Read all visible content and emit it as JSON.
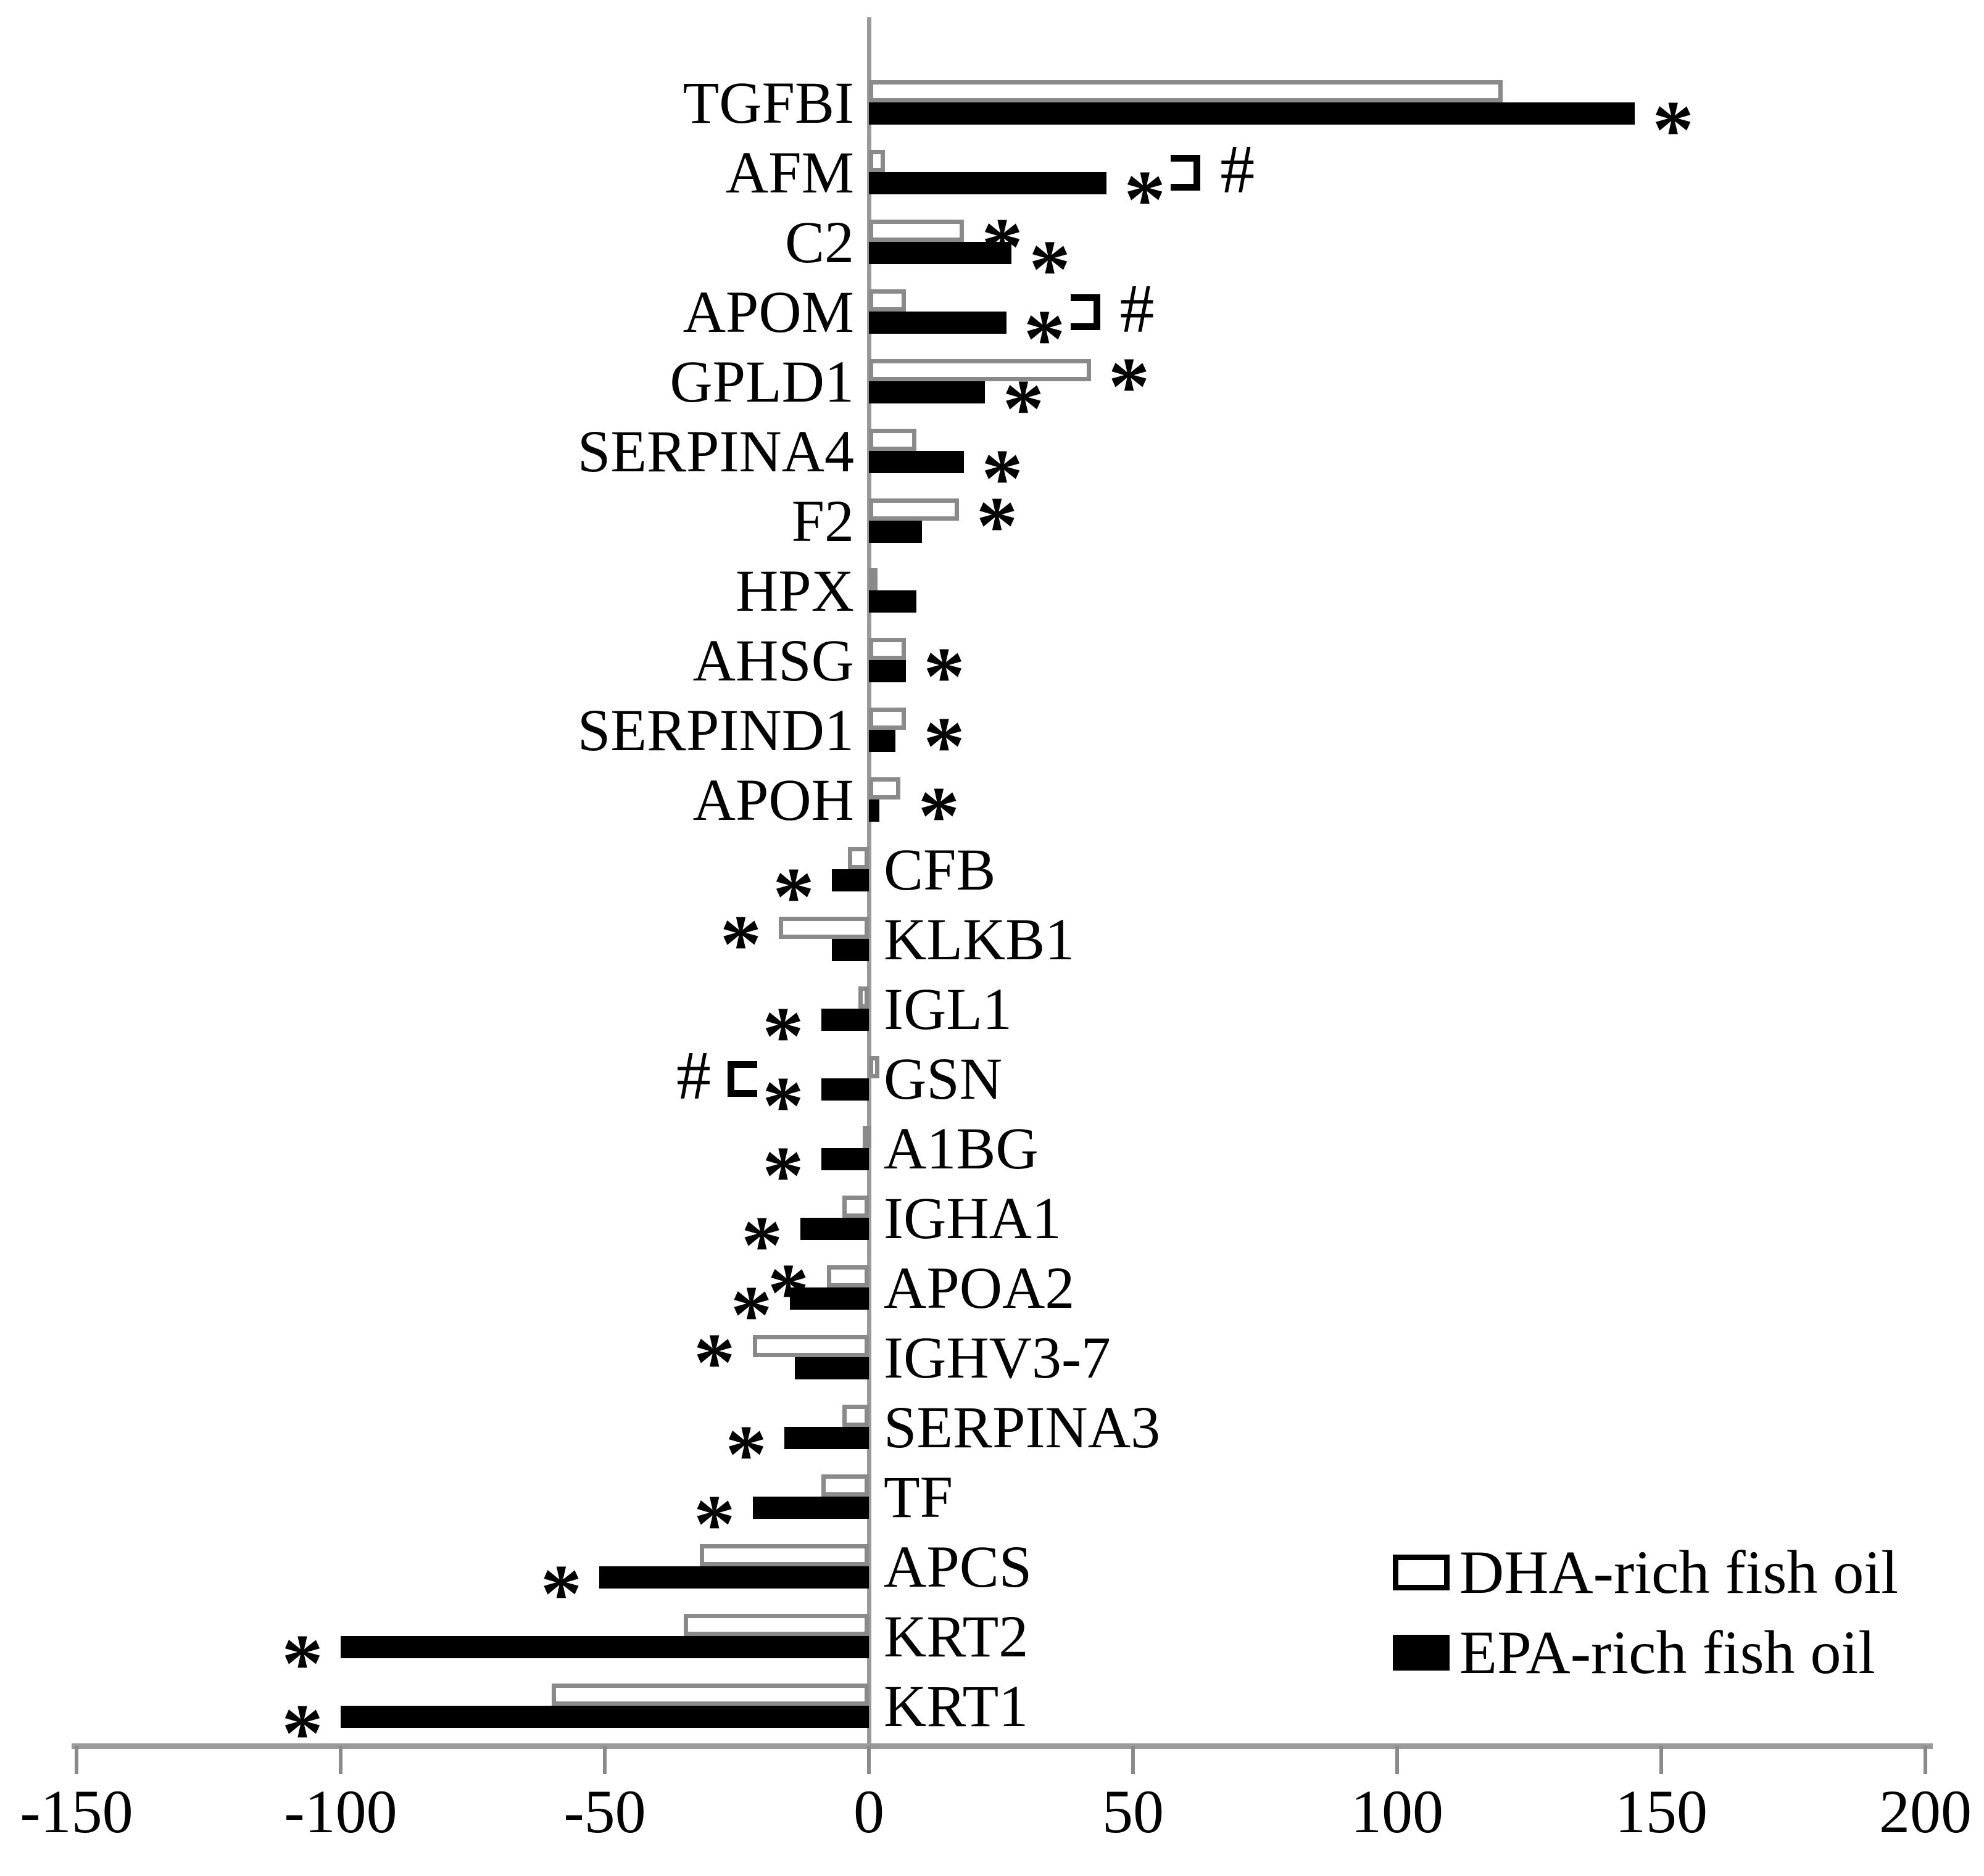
{
  "chart_data": {
    "type": "bar",
    "orientation": "horizontal",
    "title": "",
    "xlabel": "",
    "ylabel": "",
    "xlim": [
      -150,
      200
    ],
    "xticks": [
      -150,
      -100,
      -50,
      0,
      50,
      100,
      150,
      200
    ],
    "grid": false,
    "legend_position": "bottom-right",
    "axis_color": "#9a9a9a",
    "bar_outline_color": "#8a8a8a",
    "series_meta": [
      {
        "key": "dha",
        "name": "DHA-rich fish oil",
        "fill": "#ffffff",
        "border": "#8a8a8a"
      },
      {
        "key": "epa",
        "name": "EPA-rich fish oil",
        "fill": "#000000",
        "border": "#000000"
      }
    ],
    "annotation_symbols": {
      "significance": "*",
      "difference": "#"
    },
    "rows": [
      {
        "gene": "TGFBI",
        "dha": 120,
        "epa": 145,
        "stars": [
          "epa"
        ],
        "bracket": null
      },
      {
        "gene": "AFM",
        "dha": 3,
        "epa": 45,
        "stars": [
          "epa"
        ],
        "bracket": "right"
      },
      {
        "gene": "C2",
        "dha": 18,
        "epa": 27,
        "stars": [
          "dha",
          "epa"
        ],
        "bracket": null
      },
      {
        "gene": "APOM",
        "dha": 7,
        "epa": 26,
        "stars": [
          "epa"
        ],
        "bracket": "right"
      },
      {
        "gene": "GPLD1",
        "dha": 42,
        "epa": 22,
        "stars": [
          "dha",
          "epa"
        ],
        "bracket": null
      },
      {
        "gene": "SERPINA4",
        "dha": 9,
        "epa": 18,
        "stars": [
          "epa"
        ],
        "bracket": null
      },
      {
        "gene": "F2",
        "dha": 17,
        "epa": 10,
        "stars": [
          "dha"
        ],
        "bracket": null
      },
      {
        "gene": "HPX",
        "dha": 1,
        "epa": 9,
        "stars": [],
        "bracket": null
      },
      {
        "gene": "AHSG",
        "dha": 7,
        "epa": 7,
        "stars": [
          "both"
        ],
        "bracket": null
      },
      {
        "gene": "SERPIND1",
        "dha": 7,
        "epa": 5,
        "stars": [
          "both"
        ],
        "bracket": null
      },
      {
        "gene": "APOH",
        "dha": 6,
        "epa": 2,
        "stars": [
          "both"
        ],
        "bracket": null
      },
      {
        "gene": "CFB",
        "dha": -4,
        "epa": -7,
        "stars": [
          "epa"
        ],
        "bracket": null
      },
      {
        "gene": "KLKB1",
        "dha": -17,
        "epa": -7,
        "stars": [
          "dha"
        ],
        "bracket": null
      },
      {
        "gene": "IGL1",
        "dha": -2,
        "epa": -9,
        "stars": [
          "epa"
        ],
        "bracket": null
      },
      {
        "gene": "GSN",
        "dha": 2,
        "epa": -9,
        "stars": [
          "epa"
        ],
        "bracket": "left"
      },
      {
        "gene": "A1BG",
        "dha": -1,
        "epa": -9,
        "stars": [
          "epa"
        ],
        "bracket": null
      },
      {
        "gene": "IGHA1",
        "dha": -5,
        "epa": -13,
        "stars": [
          "epa"
        ],
        "bracket": null
      },
      {
        "gene": "APOA2",
        "dha": -8,
        "epa": -15,
        "stars": [
          "dha",
          "epa"
        ],
        "bracket": null
      },
      {
        "gene": "IGHV3-7",
        "dha": -22,
        "epa": -14,
        "stars": [
          "dha"
        ],
        "bracket": null
      },
      {
        "gene": "SERPINA3",
        "dha": -5,
        "epa": -16,
        "stars": [
          "epa"
        ],
        "bracket": null
      },
      {
        "gene": "TF",
        "dha": -9,
        "epa": -22,
        "stars": [
          "epa"
        ],
        "bracket": null
      },
      {
        "gene": "APCS",
        "dha": -32,
        "epa": -51,
        "stars": [
          "epa"
        ],
        "bracket": null
      },
      {
        "gene": "KRT2",
        "dha": -35,
        "epa": -100,
        "stars": [
          "epa"
        ],
        "bracket": null
      },
      {
        "gene": "KRT1",
        "dha": -60,
        "epa": -100,
        "stars": [
          "epa"
        ],
        "bracket": null
      }
    ]
  },
  "legend": {
    "items": [
      {
        "label": "DHA-rich fish oil"
      },
      {
        "label": "EPA-rich fish oil"
      }
    ]
  }
}
